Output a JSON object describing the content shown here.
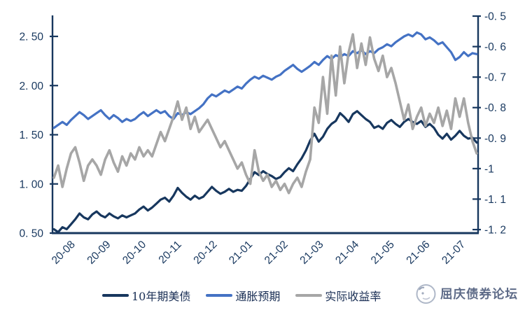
{
  "chart_data": {
    "type": "line",
    "title": "",
    "x_labels": [
      "20-08",
      "20-09",
      "20-10",
      "20-11",
      "20-12",
      "21-01",
      "21-02",
      "21-03",
      "21-04",
      "21-05",
      "21-06",
      "21-07"
    ],
    "left_axis": {
      "min": 0.5,
      "max": 2.5,
      "tick_values": [
        2.5,
        2.0,
        1.5,
        1.0,
        0.5
      ],
      "tick_labels": [
        "2. 50",
        "2. 00",
        "1. 50",
        "1. 00",
        "0. 50"
      ]
    },
    "right_axis": {
      "min": -1.2,
      "max": -0.5,
      "tick_values": [
        -0.5,
        -0.6,
        -0.7,
        -0.8,
        -0.9,
        -1.0,
        -1.1,
        -1.2
      ],
      "tick_labels": [
        "-0. 5",
        "-0. 6",
        "-0. 7",
        "-0. 8",
        "-0. 9",
        "-1",
        "-1. 1",
        "-1. 2"
      ]
    },
    "grid": false,
    "legend_position": "bottom",
    "colors": {
      "axis": "#17375E",
      "background": "#FFFFFF"
    },
    "series": [
      {
        "name": "10年期美债",
        "axis": "left",
        "color": "#17375E",
        "values": [
          0.54,
          0.51,
          0.56,
          0.54,
          0.59,
          0.64,
          0.7,
          0.66,
          0.64,
          0.69,
          0.72,
          0.68,
          0.66,
          0.7,
          0.67,
          0.65,
          0.68,
          0.66,
          0.68,
          0.7,
          0.74,
          0.77,
          0.73,
          0.76,
          0.8,
          0.84,
          0.86,
          0.82,
          0.88,
          0.96,
          0.91,
          0.87,
          0.84,
          0.88,
          0.85,
          0.87,
          0.92,
          0.97,
          0.93,
          0.9,
          0.92,
          0.95,
          0.92,
          0.94,
          0.93,
          0.98,
          1.05,
          1.12,
          1.09,
          1.13,
          1.1,
          1.08,
          1.05,
          1.07,
          1.12,
          1.16,
          1.13,
          1.2,
          1.26,
          1.34,
          1.44,
          1.51,
          1.43,
          1.48,
          1.56,
          1.61,
          1.64,
          1.72,
          1.68,
          1.63,
          1.71,
          1.74,
          1.7,
          1.66,
          1.63,
          1.57,
          1.59,
          1.56,
          1.62,
          1.65,
          1.61,
          1.58,
          1.63,
          1.66,
          1.63,
          1.61,
          1.64,
          1.58,
          1.61,
          1.57,
          1.5,
          1.46,
          1.51,
          1.45,
          1.49,
          1.54,
          1.49,
          1.46,
          1.47,
          1.42
        ]
      },
      {
        "name": "通胀预期",
        "axis": "left",
        "color": "#4472C4",
        "values": [
          1.57,
          1.6,
          1.63,
          1.6,
          1.65,
          1.69,
          1.73,
          1.7,
          1.66,
          1.69,
          1.72,
          1.75,
          1.7,
          1.66,
          1.7,
          1.67,
          1.63,
          1.66,
          1.64,
          1.66,
          1.7,
          1.73,
          1.69,
          1.72,
          1.75,
          1.72,
          1.74,
          1.69,
          1.66,
          1.72,
          1.7,
          1.73,
          1.71,
          1.74,
          1.77,
          1.81,
          1.87,
          1.91,
          1.89,
          1.92,
          1.95,
          1.93,
          1.96,
          1.99,
          1.97,
          2.02,
          2.06,
          2.09,
          2.07,
          2.1,
          2.08,
          2.06,
          2.09,
          2.11,
          2.15,
          2.18,
          2.21,
          2.17,
          2.14,
          2.17,
          2.2,
          2.24,
          2.21,
          2.26,
          2.3,
          2.27,
          2.31,
          2.29,
          2.32,
          2.3,
          2.35,
          2.33,
          2.36,
          2.32,
          2.35,
          2.33,
          2.37,
          2.39,
          2.42,
          2.4,
          2.44,
          2.47,
          2.5,
          2.52,
          2.5,
          2.54,
          2.52,
          2.47,
          2.49,
          2.46,
          2.42,
          2.44,
          2.39,
          2.34,
          2.26,
          2.29,
          2.34,
          2.3,
          2.33,
          2.32
        ]
      },
      {
        "name": "实际收益率",
        "axis": "right",
        "color": "#A6A6A6",
        "values": [
          -1.03,
          -0.99,
          -1.06,
          -1.0,
          -0.95,
          -0.93,
          -0.98,
          -1.04,
          -0.99,
          -0.97,
          -0.99,
          -1.02,
          -0.97,
          -0.94,
          -0.98,
          -1.01,
          -0.96,
          -0.99,
          -0.95,
          -0.97,
          -0.93,
          -0.96,
          -0.94,
          -0.96,
          -0.92,
          -0.88,
          -0.91,
          -0.87,
          -0.83,
          -0.78,
          -0.84,
          -0.8,
          -0.87,
          -0.83,
          -0.88,
          -0.86,
          -0.84,
          -0.87,
          -0.9,
          -0.93,
          -0.91,
          -0.94,
          -0.97,
          -1.0,
          -0.98,
          -1.02,
          -1.05,
          -0.94,
          -1.01,
          -1.04,
          -1.02,
          -1.06,
          -1.04,
          -1.07,
          -1.05,
          -1.08,
          -1.05,
          -1.03,
          -1.06,
          -1.01,
          -0.97,
          -0.8,
          -0.85,
          -0.7,
          -0.82,
          -0.63,
          -0.76,
          -0.6,
          -0.72,
          -0.62,
          -0.56,
          -0.67,
          -0.59,
          -0.66,
          -0.57,
          -0.64,
          -0.68,
          -0.63,
          -0.7,
          -0.67,
          -0.72,
          -0.78,
          -0.84,
          -0.79,
          -0.87,
          -0.83,
          -0.8,
          -0.86,
          -0.82,
          -0.85,
          -0.8,
          -0.86,
          -0.81,
          -0.87,
          -0.77,
          -0.83,
          -0.77,
          -0.85,
          -0.91,
          -0.95
        ]
      }
    ]
  },
  "watermark": {
    "text": "屈庆债券论坛"
  }
}
